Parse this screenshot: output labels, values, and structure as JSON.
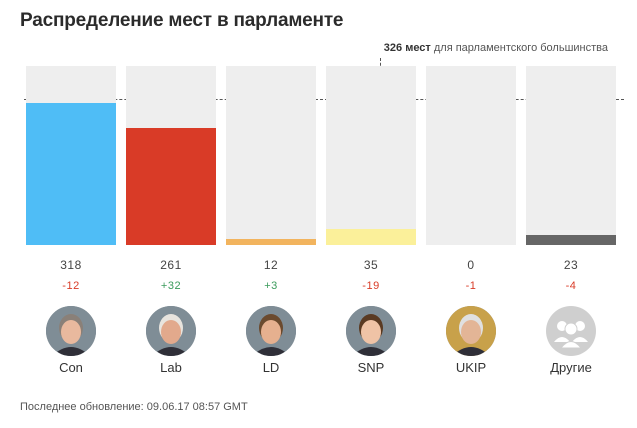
{
  "title": "Распределение мест в парламенте",
  "majority": {
    "seats_text": "326 мест",
    "suffix_text": "для парламентского большинства"
  },
  "footer": {
    "updated": "Последнее обновление: 09.06.17 08:57 GMT"
  },
  "chart_data": {
    "type": "bar",
    "categories": [
      "Con",
      "Lab",
      "LD",
      "SNP",
      "UKIP",
      "Другие"
    ],
    "values": [
      318,
      261,
      12,
      35,
      0,
      23
    ],
    "change_labels": [
      "-12",
      "+32",
      "+3",
      "-19",
      "-1",
      "-4"
    ],
    "colors": [
      "#4fbdf6",
      "#d93b27",
      "#f2b45e",
      "#fbf09a",
      "#eeeeee",
      "#666666"
    ],
    "change_colors": {
      "negative": "#d93b27",
      "positive": "#3a9b5b"
    },
    "background_color": "#eeeeee",
    "ylim": [
      0,
      400
    ],
    "reference_line": 326,
    "avatars": [
      "person-photo",
      "person-photo",
      "person-photo",
      "person-photo",
      "person-photo",
      "group-icon"
    ]
  }
}
